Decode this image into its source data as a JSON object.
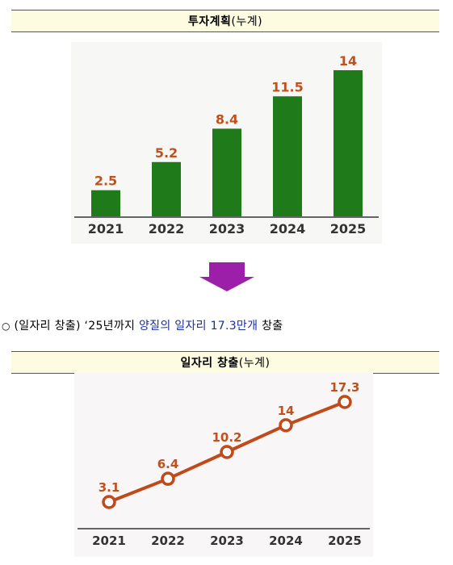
{
  "investment_section": {
    "title": "투자계획",
    "title_suffix": "(누계)"
  },
  "jobs_section": {
    "title": "일자리 창출",
    "title_suffix": "(누계)"
  },
  "summary_line": {
    "marker": "○",
    "label": "(일자리 창출)",
    "prefix": "‘25년까지",
    "highlight": "양질의 일자리 17.3만개",
    "suffix": "창출"
  },
  "colors": {
    "bar": "#1f7a1a",
    "value_label": "#c0501c",
    "line": "#c04a1a",
    "arrow": "#9b1fa8",
    "highlight_text": "#1a2ea0"
  },
  "chart_data": [
    {
      "type": "bar",
      "categories": [
        "2021",
        "2022",
        "2023",
        "2024",
        "2025"
      ],
      "values": [
        2.5,
        5.2,
        8.4,
        11.5,
        14
      ],
      "value_labels": [
        "2.5",
        "5.2",
        "8.4",
        "11.5",
        "14"
      ],
      "title": "",
      "xlabel": "",
      "ylabel": "",
      "ylim": [
        0,
        14
      ],
      "grid": false,
      "legend": "none"
    },
    {
      "type": "line",
      "categories": [
        "2021",
        "2022",
        "2023",
        "2024",
        "2025"
      ],
      "values": [
        3.1,
        6.4,
        10.2,
        14,
        17.3
      ],
      "value_labels": [
        "3.1",
        "6.4",
        "10.2",
        "14",
        "17.3"
      ],
      "title": "",
      "xlabel": "",
      "ylabel": "",
      "ylim": [
        3.1,
        17.3
      ],
      "grid": false,
      "legend": "none"
    }
  ]
}
